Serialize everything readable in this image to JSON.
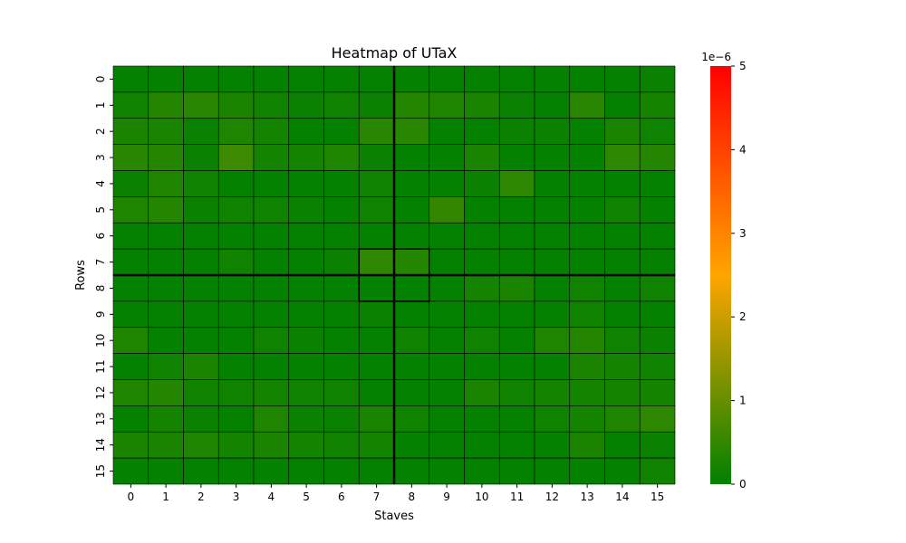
{
  "chart_data": {
    "type": "heatmap",
    "title": "Heatmap of UTaX",
    "xlabel": "Staves",
    "ylabel": "Rows",
    "x_ticks": [
      "0",
      "1",
      "2",
      "3",
      "4",
      "5",
      "6",
      "7",
      "8",
      "9",
      "10",
      "11",
      "12",
      "13",
      "14",
      "15"
    ],
    "y_ticks": [
      "0",
      "1",
      "2",
      "3",
      "4",
      "5",
      "6",
      "7",
      "8",
      "9",
      "10",
      "11",
      "12",
      "13",
      "14",
      "15"
    ],
    "colorbar": {
      "min": 0,
      "max": 5,
      "multiplier_label": "1e−6",
      "ticks": [
        "0",
        "1",
        "2",
        "3",
        "4",
        "5"
      ],
      "colors": [
        "#008000",
        "#FFA500",
        "#FF0000"
      ]
    },
    "values": [
      [
        0.05,
        0.05,
        0.05,
        0.05,
        0.05,
        0.05,
        0.05,
        0.05,
        0.05,
        0.05,
        0.05,
        0.05,
        0.05,
        0.05,
        0.05,
        0.1
      ],
      [
        0.15,
        0.35,
        0.4,
        0.25,
        0.15,
        0.1,
        0.15,
        0.1,
        0.35,
        0.3,
        0.25,
        0.1,
        0.05,
        0.4,
        0.05,
        0.2
      ],
      [
        0.25,
        0.25,
        0.1,
        0.3,
        0.2,
        0.05,
        0.05,
        0.4,
        0.4,
        0.05,
        0.05,
        0.1,
        0.1,
        0.05,
        0.25,
        0.15
      ],
      [
        0.4,
        0.35,
        0.1,
        0.6,
        0.2,
        0.2,
        0.3,
        0.1,
        0.05,
        0.05,
        0.25,
        0.05,
        0.05,
        0.05,
        0.45,
        0.35
      ],
      [
        0.1,
        0.3,
        0.15,
        0.05,
        0.05,
        0.05,
        0.05,
        0.15,
        0.05,
        0.05,
        0.1,
        0.45,
        0.05,
        0.05,
        0.05,
        0.05
      ],
      [
        0.3,
        0.35,
        0.1,
        0.15,
        0.15,
        0.1,
        0.05,
        0.15,
        0.05,
        0.5,
        0.05,
        0.05,
        0.05,
        0.05,
        0.15,
        0.05
      ],
      [
        0.05,
        0.05,
        0.05,
        0.05,
        0.05,
        0.05,
        0.05,
        0.05,
        0.05,
        0.05,
        0.05,
        0.05,
        0.05,
        0.05,
        0.05,
        0.05
      ],
      [
        0.05,
        0.05,
        0.05,
        0.15,
        0.05,
        0.05,
        0.1,
        0.45,
        0.35,
        0.05,
        0.05,
        0.05,
        0.05,
        0.05,
        0.05,
        0.05
      ],
      [
        0.05,
        0.05,
        0.05,
        0.05,
        0.05,
        0.05,
        0.05,
        0.05,
        0.05,
        0.05,
        0.2,
        0.25,
        0.05,
        0.15,
        0.05,
        0.15
      ],
      [
        0.05,
        0.05,
        0.05,
        0.05,
        0.05,
        0.05,
        0.05,
        0.1,
        0.05,
        0.05,
        0.05,
        0.05,
        0.05,
        0.15,
        0.05,
        0.05
      ],
      [
        0.3,
        0.05,
        0.05,
        0.05,
        0.15,
        0.1,
        0.05,
        0.05,
        0.15,
        0.05,
        0.15,
        0.05,
        0.3,
        0.35,
        0.15,
        0.1
      ],
      [
        0.05,
        0.15,
        0.25,
        0.05,
        0.05,
        0.05,
        0.05,
        0.05,
        0.05,
        0.05,
        0.05,
        0.05,
        0.05,
        0.25,
        0.2,
        0.15
      ],
      [
        0.3,
        0.35,
        0.15,
        0.15,
        0.2,
        0.15,
        0.15,
        0.05,
        0.05,
        0.05,
        0.25,
        0.15,
        0.2,
        0.2,
        0.2,
        0.2
      ],
      [
        0.05,
        0.2,
        0.1,
        0.05,
        0.3,
        0.1,
        0.1,
        0.25,
        0.15,
        0.05,
        0.05,
        0.05,
        0.15,
        0.2,
        0.3,
        0.45
      ],
      [
        0.25,
        0.25,
        0.3,
        0.2,
        0.25,
        0.2,
        0.15,
        0.2,
        0.05,
        0.05,
        0.05,
        0.05,
        0.05,
        0.25,
        0.05,
        0.1
      ],
      [
        0.05,
        0.05,
        0.05,
        0.05,
        0.05,
        0.05,
        0.05,
        0.05,
        0.05,
        0.05,
        0.05,
        0.05,
        0.05,
        0.05,
        0.05,
        0.15
      ]
    ],
    "highlight_box": {
      "row_start": 7,
      "row_end": 8,
      "col_start": 7,
      "col_end": 8
    },
    "divider_lines": {
      "vertical_between_columns": [
        7,
        8
      ],
      "horizontal_between_rows": [
        7,
        8
      ]
    },
    "grid": false
  }
}
